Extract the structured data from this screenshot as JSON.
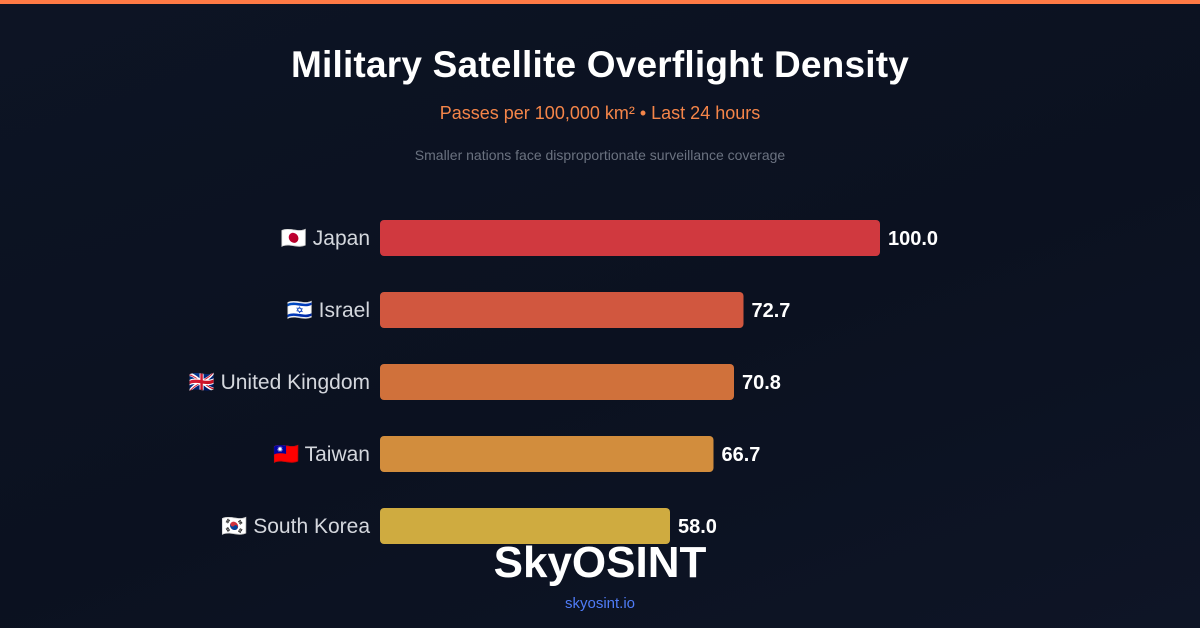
{
  "header": {
    "title": "Military Satellite Overflight Density",
    "subtitle": "Passes per 100,000 km² • Last 24 hours",
    "note": "Smaller nations face disproportionate surveillance coverage"
  },
  "brand": {
    "name": "SkyOSINT",
    "url": "skyosint.io"
  },
  "colors": {
    "accent": "#ff7a45",
    "bars": [
      "#d0393f",
      "#d1573f",
      "#d0713b",
      "#d28d3d",
      "#cfab40"
    ]
  },
  "chart_data": {
    "type": "bar",
    "orientation": "horizontal",
    "categories": [
      "🇯🇵 Japan",
      "🇮🇱 Israel",
      "🇬🇧 United Kingdom",
      "🇹🇼 Taiwan",
      "🇰🇷 South Korea"
    ],
    "values": [
      100.0,
      72.7,
      70.8,
      66.7,
      58.0
    ],
    "value_labels": [
      "100.0",
      "72.7",
      "70.8",
      "66.7",
      "58.0"
    ],
    "xlim": [
      0,
      100
    ],
    "grid": false,
    "title": "Military Satellite Overflight Density"
  }
}
